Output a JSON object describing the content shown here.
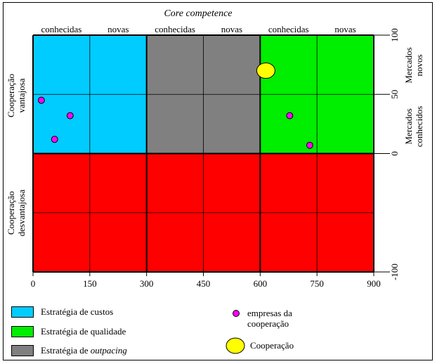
{
  "title": "Core competence",
  "top_labels": [
    "conhecidas",
    "novas",
    "conhecidas",
    "novas",
    "conhecidas",
    "novas"
  ],
  "left_labels": {
    "upper": [
      "Cooperação",
      "vantajosa"
    ],
    "lower": [
      "Cooperação",
      "desvantajosa"
    ]
  },
  "right_labels": {
    "upper": [
      "Mercados",
      "novos"
    ],
    "lower": [
      "Mercados",
      "conhecidos"
    ]
  },
  "x_ticks": [
    "0",
    "150",
    "300",
    "450",
    "600",
    "750",
    "900"
  ],
  "y_ticks": [
    "100",
    "50",
    "0",
    "-100"
  ],
  "colors": {
    "custos": "#00ccff",
    "outpacing": "#808080",
    "qualidade": "#00ee00",
    "desvantajosa": "#ff0000",
    "empresa": "#ff00ff",
    "cooperacao": "#ffff00"
  },
  "chart_data": {
    "type": "scatter",
    "xlim": [
      0,
      900
    ],
    "ylim": [
      -100,
      100
    ],
    "regions": [
      {
        "name": "Estratégia de custos",
        "x": [
          0,
          300
        ],
        "y": [
          0,
          100
        ],
        "color": "#00ccff"
      },
      {
        "name": "Estratégia de outpacing",
        "x": [
          300,
          600
        ],
        "y": [
          0,
          100
        ],
        "color": "#808080"
      },
      {
        "name": "Estratégia de qualidade",
        "x": [
          600,
          900
        ],
        "y": [
          0,
          100
        ],
        "color": "#00ee00"
      },
      {
        "name": "Cooperação desvantajosa",
        "x": [
          0,
          900
        ],
        "y": [
          -100,
          0
        ],
        "color": "#ff0000"
      }
    ],
    "empresas": [
      {
        "x": 22,
        "y": 45
      },
      {
        "x": 98,
        "y": 32
      },
      {
        "x": 57,
        "y": 12
      },
      {
        "x": 678,
        "y": 32
      },
      {
        "x": 731,
        "y": 7
      }
    ],
    "cooperacao": {
      "x": 615,
      "y": 70
    }
  },
  "legend": {
    "custos": "Estratégia de custos",
    "qualidade": "Estratégia de qualidade",
    "outpacing_prefix": "Estratégia de ",
    "outpacing_italic": "outpacing",
    "empresas_line1": "empresas da",
    "empresas_line2": "cooperação",
    "cooperacao": "Cooperação"
  }
}
